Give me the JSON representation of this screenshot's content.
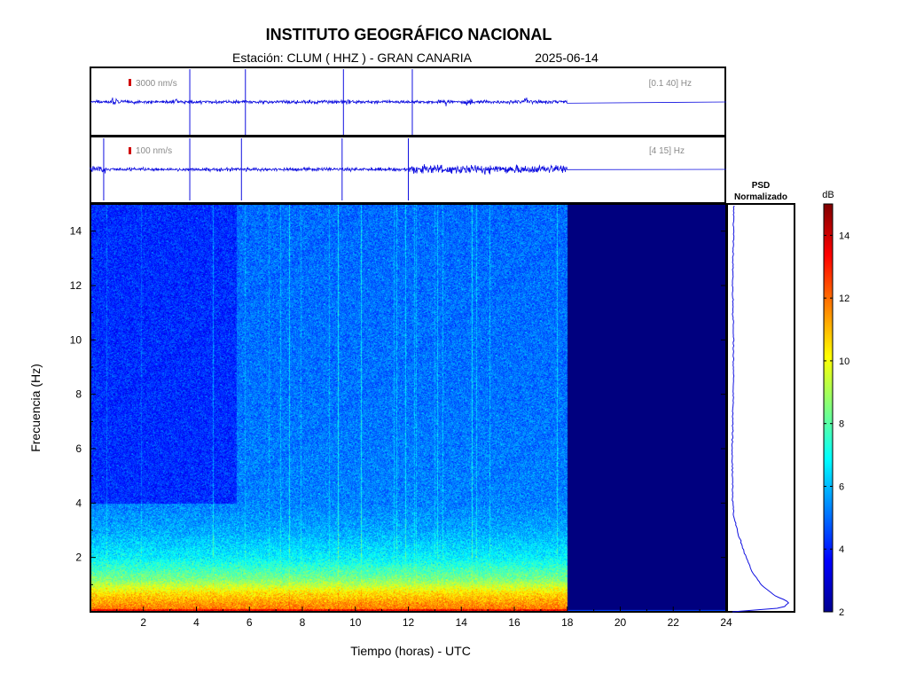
{
  "header": {
    "title": "INSTITUTO GEOGRÁFICO NACIONAL",
    "station_line": "Estación:  CLUM ( HHZ ) - GRAN CANARIA",
    "date": "2025-06-14"
  },
  "colors": {
    "trace": "#1010e0",
    "scale_mark": "#d00000",
    "axis": "#000000",
    "empty_region": "#00007f"
  },
  "chart_data": [
    {
      "type": "line",
      "panel": "seismogram-broadband",
      "scale_label": "3000 nm/s",
      "filter_label": "[0.1 40] Hz",
      "x_range_hours": [
        0,
        24
      ],
      "data_end_hour": 18,
      "spikes_hours": [
        3.75,
        5.85,
        9.55,
        12.15
      ],
      "minor_bursts_hours": [
        0.9,
        3.2,
        9.7,
        13.5,
        14.3,
        16.5
      ]
    },
    {
      "type": "line",
      "panel": "seismogram-filtered",
      "scale_label": "100 nm/s",
      "filter_label": "[4 15] Hz",
      "x_range_hours": [
        0,
        24
      ],
      "data_end_hour": 18,
      "spikes_hours": [
        0.5,
        3.75,
        5.7,
        9.5,
        12.0
      ],
      "noisy_interval_hours": [
        12.0,
        18.0
      ]
    },
    {
      "type": "heatmap",
      "panel": "spectrogram",
      "xlabel": "Tiempo (horas) - UTC",
      "ylabel": "Frecuencia  (Hz)",
      "xlim": [
        0,
        24
      ],
      "ylim": [
        0,
        15
      ],
      "xticks": [
        2,
        4,
        6,
        8,
        10,
        12,
        14,
        16,
        18,
        20,
        22,
        24
      ],
      "yticks": [
        2,
        4,
        6,
        8,
        10,
        12,
        14
      ],
      "data_end_hour": 18,
      "level_by_frequency": [
        {
          "freq": 0.0,
          "db": 12.0
        },
        {
          "freq": 0.3,
          "db": 11.5
        },
        {
          "freq": 0.7,
          "db": 10.5
        },
        {
          "freq": 1.2,
          "db": 8.5
        },
        {
          "freq": 2.0,
          "db": 6.8
        },
        {
          "freq": 3.0,
          "db": 5.8
        },
        {
          "freq": 4.0,
          "db": 5.3
        },
        {
          "freq": 8.0,
          "db": 5.1
        },
        {
          "freq": 15.0,
          "db": 5.0
        }
      ],
      "quiet_region": {
        "hours": [
          0,
          5.5
        ],
        "freq": [
          4,
          15
        ],
        "db": 4.2
      },
      "empty_fill_db": 2,
      "colorbar": {
        "label": "dB",
        "range": [
          2,
          15
        ],
        "ticks": [
          2,
          4,
          6,
          8,
          10,
          12,
          14
        ]
      }
    },
    {
      "type": "line",
      "panel": "psd",
      "title_line1": "PSD",
      "title_line2": "Normalizado",
      "profile": [
        {
          "freq": 0.0,
          "value": 0.06
        },
        {
          "freq": 0.15,
          "value": 0.85
        },
        {
          "freq": 0.35,
          "value": 0.95
        },
        {
          "freq": 0.6,
          "value": 0.72
        },
        {
          "freq": 1.0,
          "value": 0.5
        },
        {
          "freq": 1.5,
          "value": 0.36
        },
        {
          "freq": 2.0,
          "value": 0.27
        },
        {
          "freq": 2.5,
          "value": 0.2
        },
        {
          "freq": 3.0,
          "value": 0.13
        },
        {
          "freq": 3.5,
          "value": 0.08
        },
        {
          "freq": 4.0,
          "value": 0.06
        },
        {
          "freq": 6.0,
          "value": 0.05
        },
        {
          "freq": 8.0,
          "value": 0.07
        },
        {
          "freq": 10.0,
          "value": 0.07
        },
        {
          "freq": 12.0,
          "value": 0.06
        },
        {
          "freq": 15.0,
          "value": 0.08
        }
      ]
    }
  ]
}
